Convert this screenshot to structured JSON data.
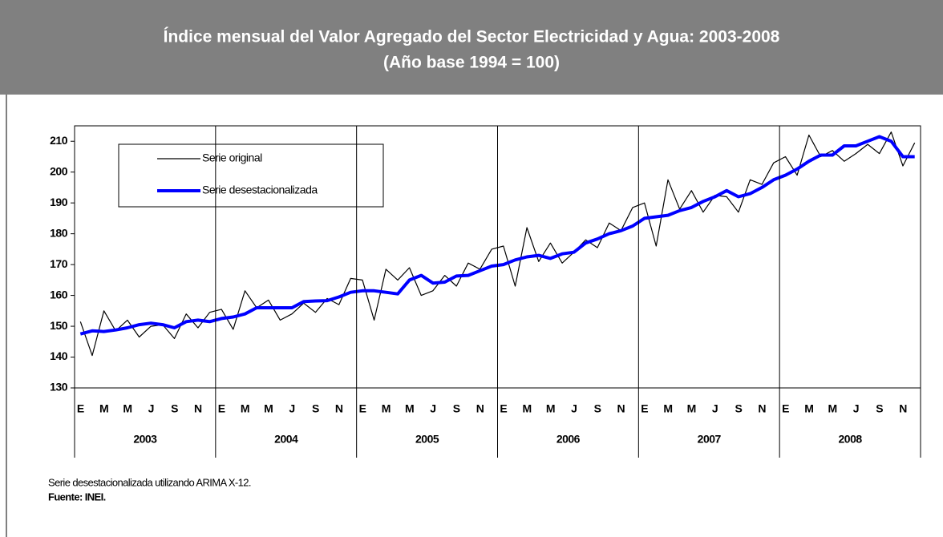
{
  "chart_data": {
    "type": "line",
    "title": "Índice mensual del Valor Agregado del Sector Electricidad y Agua: 2003-2008",
    "subtitle": "(Año base 1994 = 100)",
    "categories": [
      "E",
      null,
      "M",
      null,
      "M",
      null,
      "J",
      null,
      "S",
      null,
      "N",
      null,
      "E",
      null,
      "M",
      null,
      "M",
      null,
      "J",
      null,
      "S",
      null,
      "N",
      null,
      "E",
      null,
      "M",
      null,
      "M",
      null,
      "J",
      null,
      "S",
      null,
      "N",
      null,
      "E",
      null,
      "M",
      null,
      "M",
      null,
      "J",
      null,
      "S",
      null,
      "N",
      null,
      "E",
      null,
      "M",
      null,
      "M",
      null,
      "J",
      null,
      "S",
      null,
      "N",
      null,
      "E",
      null,
      "M",
      null,
      "M",
      null,
      "J",
      null,
      "S",
      null,
      "N",
      null
    ],
    "years": [
      "2003",
      "2004",
      "2005",
      "2006",
      "2007",
      "2008"
    ],
    "series": [
      {
        "name": "Serie original",
        "color": "#000000",
        "values": [
          151.5,
          140.5,
          155,
          148.5,
          152,
          146.5,
          150,
          150.5,
          146,
          154,
          149.5,
          154.5,
          155.5,
          149,
          161.5,
          156,
          158.5,
          152,
          154,
          157.5,
          154.5,
          159,
          157,
          165.5,
          165,
          152,
          168.5,
          165,
          169,
          160,
          161.5,
          166.5,
          163,
          170.5,
          168.5,
          175,
          176,
          163,
          182,
          171,
          177,
          170.5,
          174,
          178,
          175.5,
          183.5,
          181,
          188.5,
          190,
          176,
          197.5,
          188,
          194,
          187,
          192.5,
          192,
          187,
          197.5,
          196,
          203,
          205,
          199,
          212,
          205,
          207,
          203.5,
          206,
          209,
          206,
          213,
          202,
          209.5
        ]
      },
      {
        "name": "Serie desestacionalizada",
        "color": "#0000ff",
        "values": [
          147.5,
          148.5,
          148.3,
          148.8,
          149.5,
          150.5,
          151,
          150.5,
          149.5,
          151.5,
          152,
          151.5,
          152.5,
          153,
          154,
          156,
          156,
          156,
          156,
          158,
          158.2,
          158.3,
          159.5,
          161,
          161.5,
          161.5,
          161,
          160.5,
          165,
          166.5,
          164,
          164.3,
          166.3,
          166.5,
          168,
          169.5,
          170,
          171.5,
          172.5,
          173,
          172,
          173.5,
          174,
          177,
          178.3,
          180,
          181,
          182.5,
          185,
          185.5,
          186,
          187.5,
          188.5,
          190.5,
          192,
          194,
          192,
          193,
          195,
          197.5,
          199,
          201,
          203.5,
          205.5,
          205.5,
          208.5,
          208.5,
          210,
          211.5,
          210,
          205,
          205
        ]
      }
    ],
    "ylim": [
      130,
      215
    ],
    "yticks": [
      130,
      140,
      150,
      160,
      170,
      180,
      190,
      200,
      210
    ],
    "note": "Serie desestacionalizada utilizando ARIMA X-12.",
    "source": "Fuente: INEI."
  }
}
